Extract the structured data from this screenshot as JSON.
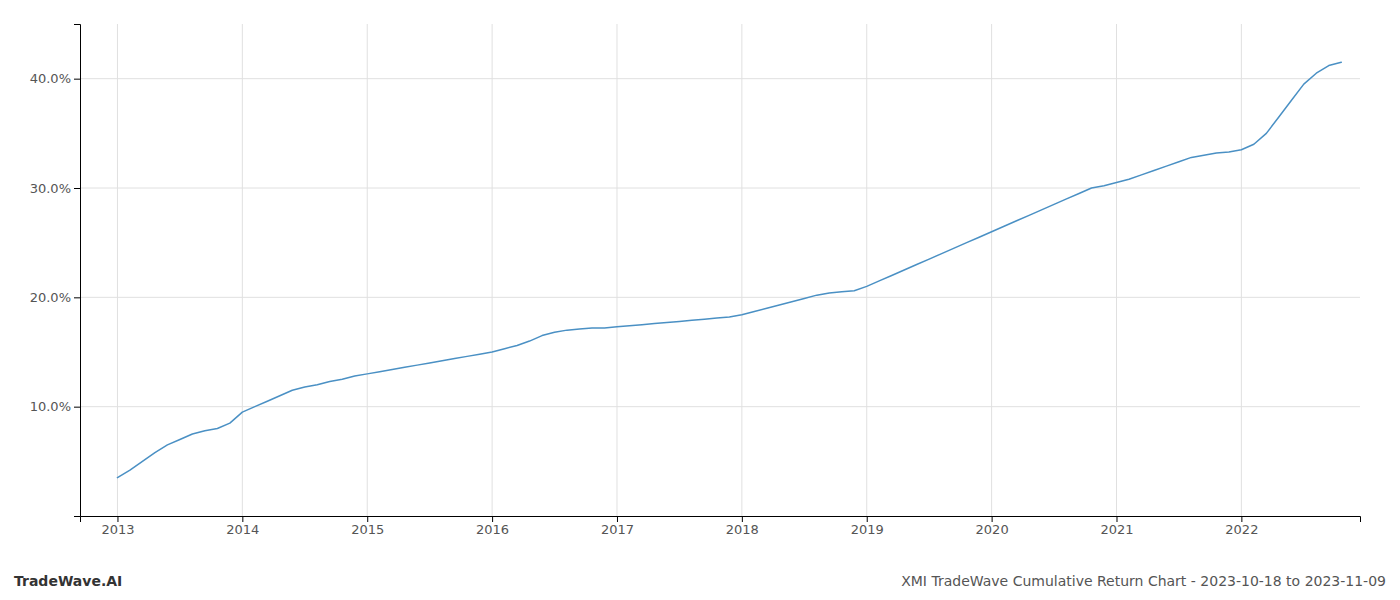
{
  "chart_data": {
    "type": "line",
    "title": "XMI TradeWave Cumulative Return Chart - 2023-10-18 to 2023-11-09",
    "annotations": [
      "TradeWave.AI"
    ],
    "color": "#4a90c4",
    "grid": true,
    "x": [
      2013.0,
      2013.1,
      2013.2,
      2013.3,
      2013.4,
      2013.5,
      2013.6,
      2013.7,
      2013.8,
      2013.9,
      2014.0,
      2014.1,
      2014.2,
      2014.3,
      2014.4,
      2014.5,
      2014.6,
      2014.7,
      2014.8,
      2014.9,
      2015.0,
      2015.1,
      2015.2,
      2015.3,
      2015.4,
      2015.5,
      2015.6,
      2015.7,
      2015.8,
      2015.9,
      2016.0,
      2016.1,
      2016.2,
      2016.3,
      2016.4,
      2016.5,
      2016.6,
      2016.7,
      2016.8,
      2016.9,
      2017.0,
      2017.1,
      2017.2,
      2017.3,
      2017.4,
      2017.5,
      2017.6,
      2017.7,
      2017.8,
      2017.9,
      2018.0,
      2018.1,
      2018.2,
      2018.3,
      2018.4,
      2018.5,
      2018.6,
      2018.7,
      2018.8,
      2018.9,
      2019.0,
      2019.1,
      2019.2,
      2019.3,
      2019.4,
      2019.5,
      2019.6,
      2019.7,
      2019.8,
      2019.9,
      2020.0,
      2020.1,
      2020.2,
      2020.3,
      2020.4,
      2020.5,
      2020.6,
      2020.7,
      2020.8,
      2020.9,
      2021.0,
      2021.1,
      2021.2,
      2021.3,
      2021.4,
      2021.5,
      2021.6,
      2021.7,
      2021.8,
      2021.9,
      2022.0,
      2022.1,
      2022.2,
      2022.3,
      2022.4,
      2022.5,
      2022.6,
      2022.7,
      2022.8
    ],
    "values": [
      3.5,
      4.2,
      5.0,
      5.8,
      6.5,
      7.0,
      7.5,
      7.8,
      8.0,
      8.5,
      9.5,
      10.0,
      10.5,
      11.0,
      11.5,
      11.8,
      12.0,
      12.3,
      12.5,
      12.8,
      13.0,
      13.2,
      13.4,
      13.6,
      13.8,
      14.0,
      14.2,
      14.4,
      14.6,
      14.8,
      15.0,
      15.3,
      15.6,
      16.0,
      16.5,
      16.8,
      17.0,
      17.1,
      17.2,
      17.2,
      17.3,
      17.4,
      17.5,
      17.6,
      17.7,
      17.8,
      17.9,
      18.0,
      18.1,
      18.2,
      18.4,
      18.7,
      19.0,
      19.3,
      19.6,
      19.9,
      20.2,
      20.4,
      20.5,
      20.6,
      21.0,
      21.5,
      22.0,
      22.5,
      23.0,
      23.5,
      24.0,
      24.5,
      25.0,
      25.5,
      26.0,
      26.5,
      27.0,
      27.5,
      28.0,
      28.5,
      29.0,
      29.5,
      30.0,
      30.2,
      30.5,
      30.8,
      31.2,
      31.6,
      32.0,
      32.4,
      32.8,
      33.0,
      33.2,
      33.3,
      33.5,
      34.0,
      35.0,
      36.5,
      38.0,
      39.5,
      40.5,
      41.2,
      41.5
    ],
    "xlim": [
      2012.7,
      2022.95
    ],
    "ylim": [
      0,
      45
    ],
    "xticks": [
      2013,
      2014,
      2015,
      2016,
      2017,
      2018,
      2019,
      2020,
      2021,
      2022
    ],
    "yticks": [
      {
        "value": 10.0,
        "label": "10.0%"
      },
      {
        "value": 20.0,
        "label": "20.0%"
      },
      {
        "value": 30.0,
        "label": "30.0%"
      },
      {
        "value": 40.0,
        "label": "40.0%"
      }
    ]
  }
}
